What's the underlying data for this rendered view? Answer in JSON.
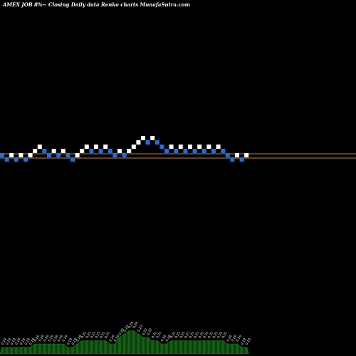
{
  "title": "AMEX JOB 8%~ Closing Daily data Renko charts MunafaSutra.com",
  "colors": {
    "background": "#000000",
    "up_brick": "#ffffff",
    "down_brick": "#1e6fe0",
    "price_line": "#c8802a",
    "volume_fill": "#0a3d0a",
    "volume_stroke": "#1f7a1f",
    "text": "#ffffff"
  },
  "chart_data": {
    "type": "renko",
    "title": "AMEX JOB 8%~ Closing Daily data Renko charts MunafaSutra.com",
    "brick_size_label": "8%",
    "bricks": [
      {
        "dir": "down",
        "level": 4
      },
      {
        "dir": "down",
        "level": 3
      },
      {
        "dir": "up",
        "level": 4
      },
      {
        "dir": "down",
        "level": 3
      },
      {
        "dir": "up",
        "level": 4
      },
      {
        "dir": "down",
        "level": 3
      },
      {
        "dir": "up",
        "level": 4
      },
      {
        "dir": "up",
        "level": 5
      },
      {
        "dir": "up",
        "level": 6
      },
      {
        "dir": "down",
        "level": 5
      },
      {
        "dir": "down",
        "level": 4
      },
      {
        "dir": "up",
        "level": 5
      },
      {
        "dir": "down",
        "level": 4
      },
      {
        "dir": "up",
        "level": 5
      },
      {
        "dir": "down",
        "level": 4
      },
      {
        "dir": "down",
        "level": 3
      },
      {
        "dir": "up",
        "level": 4
      },
      {
        "dir": "up",
        "level": 5
      },
      {
        "dir": "up",
        "level": 6
      },
      {
        "dir": "down",
        "level": 5
      },
      {
        "dir": "up",
        "level": 6
      },
      {
        "dir": "down",
        "level": 5
      },
      {
        "dir": "up",
        "level": 6
      },
      {
        "dir": "down",
        "level": 5
      },
      {
        "dir": "down",
        "level": 4
      },
      {
        "dir": "up",
        "level": 5
      },
      {
        "dir": "down",
        "level": 4
      },
      {
        "dir": "up",
        "level": 5
      },
      {
        "dir": "up",
        "level": 6
      },
      {
        "dir": "up",
        "level": 7
      },
      {
        "dir": "up",
        "level": 8
      },
      {
        "dir": "down",
        "level": 7
      },
      {
        "dir": "up",
        "level": 8
      },
      {
        "dir": "down",
        "level": 7
      },
      {
        "dir": "down",
        "level": 6
      },
      {
        "dir": "down",
        "level": 5
      },
      {
        "dir": "up",
        "level": 6
      },
      {
        "dir": "down",
        "level": 5
      },
      {
        "dir": "up",
        "level": 6
      },
      {
        "dir": "down",
        "level": 5
      },
      {
        "dir": "up",
        "level": 6
      },
      {
        "dir": "down",
        "level": 5
      },
      {
        "dir": "up",
        "level": 6
      },
      {
        "dir": "down",
        "level": 5
      },
      {
        "dir": "up",
        "level": 6
      },
      {
        "dir": "down",
        "level": 5
      },
      {
        "dir": "up",
        "level": 6
      },
      {
        "dir": "down",
        "level": 5
      },
      {
        "dir": "down",
        "level": 4
      },
      {
        "dir": "down",
        "level": 3
      },
      {
        "dir": "up",
        "level": 4
      },
      {
        "dir": "down",
        "level": 3
      },
      {
        "dir": "up",
        "level": 4
      }
    ],
    "price_lines_levels": [
      4,
      3
    ],
    "volume_labels": [
      "0.19",
      "0.19",
      "0.19",
      "0.19",
      "0.19",
      "0.19",
      "0.19",
      "0.20",
      "0.20",
      "0.20",
      "0.20",
      "0.20",
      "0.20",
      "0.20",
      "0.19",
      "0.19",
      "0.20",
      "0.21",
      "0.21",
      "0.21",
      "0.21",
      "0.21",
      "0.21",
      "0.20",
      "0.20",
      "0.22",
      "0.23",
      "0.24",
      "0.24",
      "0.23",
      "0.22",
      "0.22",
      "0.21",
      "0.21",
      "0.20",
      "0.20",
      "0.21",
      "0.21",
      "0.21",
      "0.21",
      "0.21",
      "0.21",
      "0.21",
      "0.21",
      "0.21",
      "0.21",
      "0.21",
      "0.21",
      "0.20",
      "0.20",
      "0.20",
      "0.19",
      "0.19"
    ],
    "volume_values": [
      0.19,
      0.19,
      0.19,
      0.19,
      0.19,
      0.19,
      0.19,
      0.2,
      0.2,
      0.2,
      0.2,
      0.2,
      0.2,
      0.2,
      0.19,
      0.19,
      0.2,
      0.21,
      0.21,
      0.21,
      0.21,
      0.21,
      0.21,
      0.2,
      0.2,
      0.22,
      0.23,
      0.24,
      0.24,
      0.23,
      0.22,
      0.22,
      0.21,
      0.21,
      0.2,
      0.2,
      0.21,
      0.21,
      0.21,
      0.21,
      0.21,
      0.21,
      0.21,
      0.21,
      0.21,
      0.21,
      0.21,
      0.21,
      0.2,
      0.2,
      0.2,
      0.19,
      0.19
    ]
  }
}
